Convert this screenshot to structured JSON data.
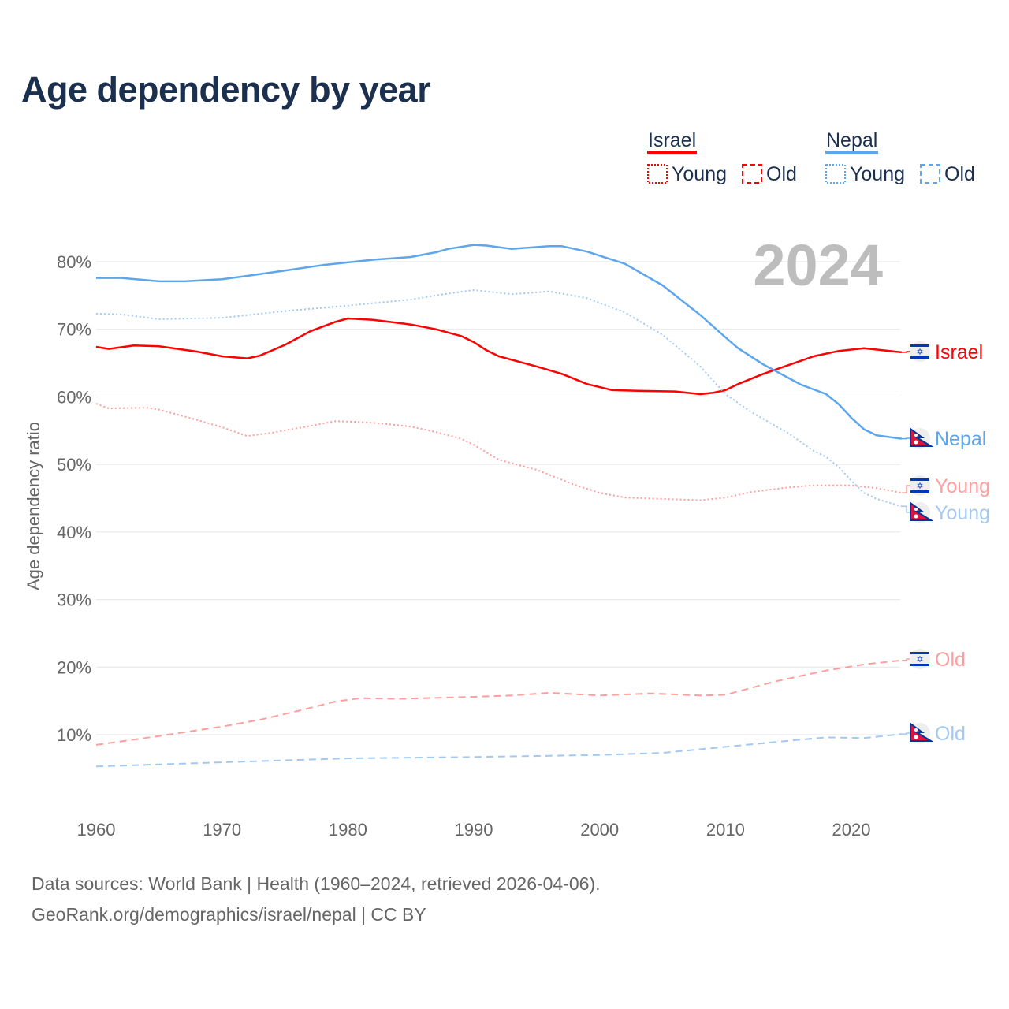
{
  "title": "Age dependency by year",
  "year_watermark": "2024",
  "source_line1": "Data sources: World Bank | Health (1960–2024, retrieved 2026-04-06).",
  "source_line2": "GeoRank.org/demographics/israel/nepal | CC BY",
  "legend": {
    "groups": [
      {
        "name": "Israel",
        "color": "#ff0000",
        "items": [
          "Young",
          "Old"
        ]
      },
      {
        "name": "Nepal",
        "color": "#5ea6ec",
        "items": [
          "Young",
          "Old"
        ]
      }
    ]
  },
  "chart_data": {
    "type": "line",
    "title": "Age dependency by year",
    "xlabel": "",
    "ylabel": "Age dependency ratio",
    "xlim": [
      1960,
      2024
    ],
    "ylim": [
      0,
      85
    ],
    "xticks": [
      1960,
      1970,
      1980,
      1990,
      2000,
      2010,
      2020
    ],
    "yticks": [
      10,
      20,
      30,
      40,
      50,
      60,
      70,
      80
    ],
    "ytick_labels": [
      "10%",
      "20%",
      "30%",
      "40%",
      "50%",
      "60%",
      "70%",
      "80%"
    ],
    "grid": true,
    "legend_position": "top-right",
    "series": [
      {
        "name": "Israel",
        "label": "Israel",
        "country": "Israel",
        "dash": "solid",
        "color": "#ff0000",
        "x": [
          1960,
          1961,
          1963,
          1965,
          1968,
          1970,
          1972,
          1973,
          1975,
          1977,
          1979,
          1980,
          1982,
          1985,
          1987,
          1989,
          1990,
          1991,
          1992,
          1995,
          1997,
          1999,
          2001,
          2003,
          2006,
          2008,
          2009,
          2010,
          2011,
          2013,
          2015,
          2017,
          2019,
          2021,
          2024
        ],
        "y": [
          67.4,
          67.1,
          67.6,
          67.5,
          66.7,
          66.0,
          65.7,
          66.1,
          67.7,
          69.7,
          71.1,
          71.6,
          71.4,
          70.7,
          70.0,
          69.0,
          68.1,
          66.9,
          66.0,
          64.5,
          63.4,
          61.9,
          61.0,
          60.9,
          60.8,
          60.4,
          60.6,
          61.0,
          61.9,
          63.4,
          64.7,
          66.0,
          66.8,
          67.2,
          66.6
        ]
      },
      {
        "name": "Nepal",
        "label": "Nepal",
        "country": "Nepal",
        "dash": "solid",
        "color": "#5ea6ec",
        "x": [
          1960,
          1962,
          1965,
          1967,
          1970,
          1972,
          1975,
          1978,
          1980,
          1982,
          1985,
          1987,
          1988,
          1990,
          1991,
          1993,
          1996,
          1997,
          1999,
          2002,
          2005,
          2008,
          2010,
          2011,
          2013,
          2016,
          2018,
          2019,
          2020,
          2021,
          2022,
          2024
        ],
        "y": [
          77.6,
          77.6,
          77.1,
          77.1,
          77.4,
          77.9,
          78.7,
          79.5,
          79.9,
          80.3,
          80.7,
          81.4,
          81.9,
          82.5,
          82.4,
          81.9,
          82.3,
          82.3,
          81.5,
          79.7,
          76.5,
          72.1,
          68.8,
          67.2,
          64.8,
          61.8,
          60.4,
          58.9,
          56.9,
          55.2,
          54.3,
          53.8
        ]
      },
      {
        "name": "Israel Young",
        "label": "Young",
        "country": "Israel",
        "dash": "dotted",
        "color": "#ff9e9e",
        "x": [
          1960,
          1961,
          1964,
          1965,
          1968,
          1970,
          1972,
          1974,
          1977,
          1979,
          1981,
          1983,
          1985,
          1987,
          1989,
          1990,
          1992,
          1995,
          1998,
          2000,
          2002,
          2005,
          2008,
          2010,
          2012,
          2015,
          2017,
          2020,
          2022,
          2024
        ],
        "y": [
          59.0,
          58.3,
          58.4,
          58.1,
          56.6,
          55.5,
          54.2,
          54.7,
          55.7,
          56.4,
          56.3,
          56.0,
          55.6,
          54.8,
          53.8,
          52.9,
          50.7,
          49.2,
          47.0,
          45.8,
          45.1,
          44.9,
          44.7,
          45.1,
          45.9,
          46.6,
          46.9,
          46.9,
          46.5,
          45.8
        ]
      },
      {
        "name": "Nepal Young",
        "label": "Young",
        "country": "Nepal",
        "dash": "dotted",
        "color": "#a3c9f2",
        "x": [
          1960,
          1962,
          1965,
          1970,
          1975,
          1980,
          1985,
          1988,
          1990,
          1993,
          1996,
          1999,
          2002,
          2005,
          2008,
          2010,
          2012,
          2015,
          2017,
          2018,
          2019,
          2020,
          2021,
          2022,
          2024
        ],
        "y": [
          72.3,
          72.2,
          71.5,
          71.7,
          72.7,
          73.5,
          74.4,
          75.3,
          75.8,
          75.2,
          75.6,
          74.6,
          72.5,
          69.2,
          64.5,
          60.4,
          57.8,
          54.6,
          52.0,
          51.1,
          49.6,
          47.6,
          45.8,
          44.9,
          43.8
        ]
      },
      {
        "name": "Israel Old",
        "label": "Old",
        "country": "Israel",
        "dash": "dashed",
        "color": "#ff9e9e",
        "x": [
          1960,
          1965,
          1970,
          1973,
          1976,
          1979,
          1981,
          1984,
          1990,
          1993,
          1996,
          2000,
          2004,
          2008,
          2010,
          2014,
          2018,
          2021,
          2024
        ],
        "y": [
          8.5,
          9.8,
          11.2,
          12.2,
          13.5,
          14.9,
          15.4,
          15.3,
          15.6,
          15.8,
          16.2,
          15.8,
          16.1,
          15.8,
          15.9,
          17.9,
          19.5,
          20.4,
          21.0
        ]
      },
      {
        "name": "Nepal Old",
        "label": "Old",
        "country": "Nepal",
        "dash": "dashed",
        "color": "#a3c9f2",
        "x": [
          1960,
          1970,
          1980,
          1990,
          2000,
          2005,
          2010,
          2015,
          2018,
          2021,
          2024
        ],
        "y": [
          5.3,
          5.9,
          6.5,
          6.7,
          7.0,
          7.3,
          8.2,
          9.1,
          9.6,
          9.5,
          10.1
        ]
      }
    ]
  }
}
